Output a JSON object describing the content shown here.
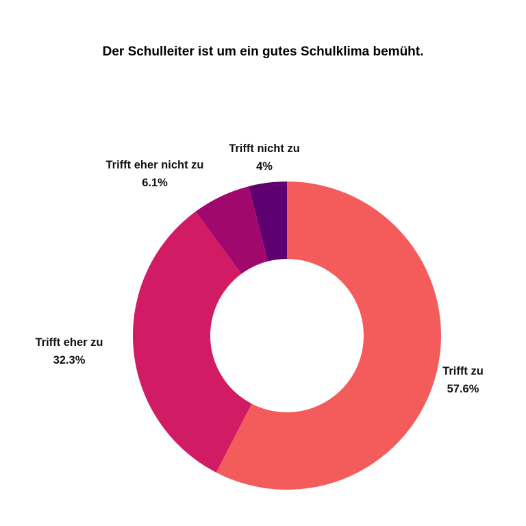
{
  "chart_data": {
    "type": "pie",
    "donut": true,
    "title": "Der Schulleiter ist um ein gutes Schulklima bemüht.",
    "categories": [
      "Trifft zu",
      "Trifft eher zu",
      "Trifft eher nicht zu",
      "Trifft nicht zu"
    ],
    "values": [
      57.6,
      32.3,
      6.1,
      4
    ],
    "data_labels": [
      "57.6%",
      "32.3%",
      "6.1%",
      "4%"
    ],
    "colors": [
      "#F45B5B",
      "#D11B64",
      "#A1086E",
      "#5F0070"
    ],
    "start": "12 o'clock",
    "direction": "clockwise",
    "legend": "none"
  }
}
